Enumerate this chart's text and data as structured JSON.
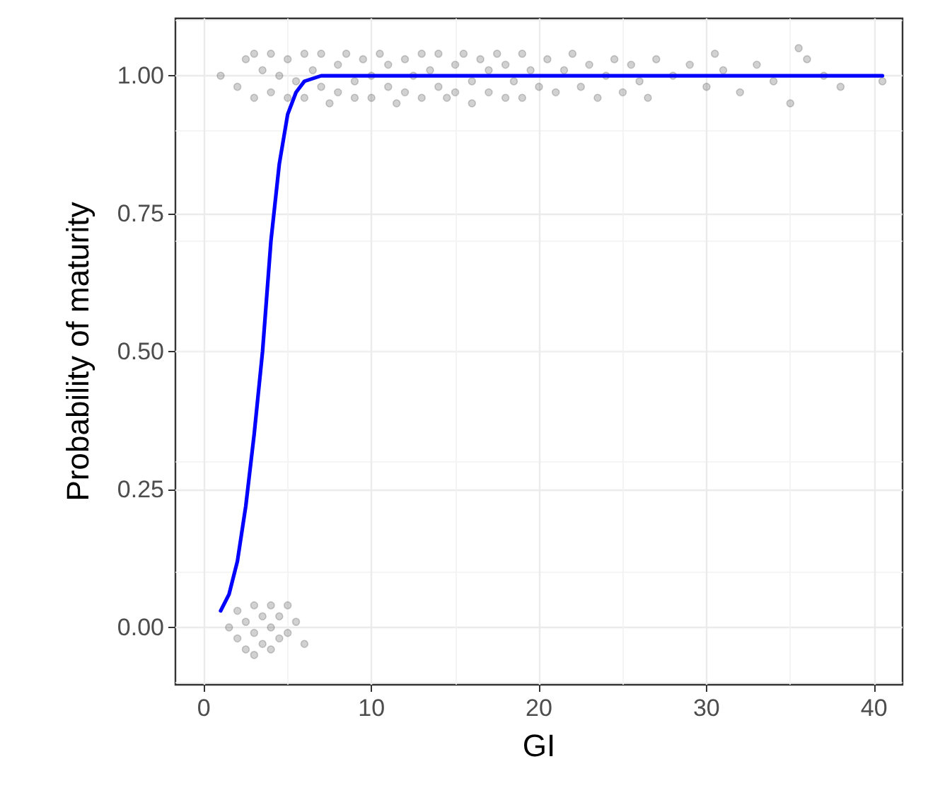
{
  "chart_data": {
    "type": "scatter",
    "xlabel": "GI",
    "ylabel": "Probability of maturity",
    "xlim": [
      -1.7,
      41.7
    ],
    "ylim": [
      -0.104,
      1.104
    ],
    "xticks": [
      0,
      10,
      20,
      30,
      40
    ],
    "yticks": [
      {
        "value": 0,
        "label": "0.00"
      },
      {
        "value": 0.25,
        "label": "0.25"
      },
      {
        "value": 0.5,
        "label": "0.50"
      },
      {
        "value": 0.75,
        "label": "0.75"
      },
      {
        "value": 1,
        "label": "1.00"
      }
    ],
    "grid": true,
    "marker": "circle",
    "series": [
      {
        "color": "#000000",
        "x": [
          1,
          2,
          2.5,
          3,
          3,
          3.5,
          4,
          4,
          4.5,
          5,
          5,
          5.5,
          6,
          6,
          6.5,
          7,
          7,
          7.5,
          8,
          8,
          8.5,
          9,
          9,
          9.5,
          10,
          10,
          10.5,
          11,
          11,
          11.5,
          12,
          12,
          12.5,
          13,
          13,
          13.5,
          14,
          14,
          14.5,
          15,
          15,
          15.5,
          16,
          16,
          16.5,
          17,
          17,
          17.5,
          18,
          18,
          18.5,
          19,
          19,
          19.5,
          20,
          20.5,
          21,
          21.5,
          22,
          22.5,
          23,
          23.5,
          24,
          24.5,
          25,
          25.5,
          26,
          26.5,
          27,
          28,
          29,
          30,
          30.5,
          31,
          32,
          33,
          34,
          35,
          35.5,
          36,
          37,
          38,
          40.5,
          1.5,
          2,
          2,
          2.5,
          2.5,
          3,
          3,
          3,
          3.5,
          3.5,
          4,
          4,
          4,
          4.5,
          4.5,
          5,
          5,
          5.5,
          6
        ],
        "values": [
          1,
          0.98,
          1.03,
          0.96,
          1.04,
          1.01,
          0.97,
          1.04,
          1,
          0.96,
          1.03,
          0.99,
          1.04,
          0.96,
          1.01,
          0.98,
          1.04,
          0.95,
          1.02,
          0.97,
          1.04,
          0.99,
          0.96,
          1.03,
          1,
          0.96,
          1.04,
          0.98,
          1.02,
          0.95,
          1.03,
          0.97,
          1,
          1.04,
          0.96,
          1.01,
          0.98,
          1.04,
          0.96,
          1.02,
          0.97,
          1.04,
          0.99,
          0.95,
          1.03,
          0.97,
          1.01,
          1.04,
          0.96,
          1.02,
          0.99,
          1.04,
          0.96,
          1.01,
          0.98,
          1.03,
          0.97,
          1.01,
          1.04,
          0.98,
          1.02,
          0.96,
          1,
          1.03,
          0.97,
          1.02,
          0.99,
          0.96,
          1.03,
          1,
          1.02,
          0.98,
          1.04,
          1.01,
          0.97,
          1.02,
          0.99,
          0.95,
          1.05,
          1.03,
          1,
          0.98,
          0.99,
          0,
          -0.02,
          0.03,
          0.01,
          -0.04,
          0.04,
          -0.01,
          -0.05,
          0.02,
          -0.03,
          0,
          0.04,
          -0.04,
          0.02,
          -0.02,
          0.04,
          -0.01,
          0.01,
          -0.03
        ]
      },
      {
        "type": "line",
        "color": "#0000ff",
        "marker": "none",
        "line_style": "solid",
        "x": [
          1,
          1.5,
          2,
          2.5,
          3,
          3.5,
          4,
          4.5,
          5,
          5.5,
          6,
          7,
          10,
          20,
          40.5
        ],
        "values": [
          0.03,
          0.06,
          0.12,
          0.22,
          0.35,
          0.5,
          0.7,
          0.84,
          0.93,
          0.97,
          0.99,
          1,
          1,
          1,
          1
        ]
      }
    ]
  }
}
